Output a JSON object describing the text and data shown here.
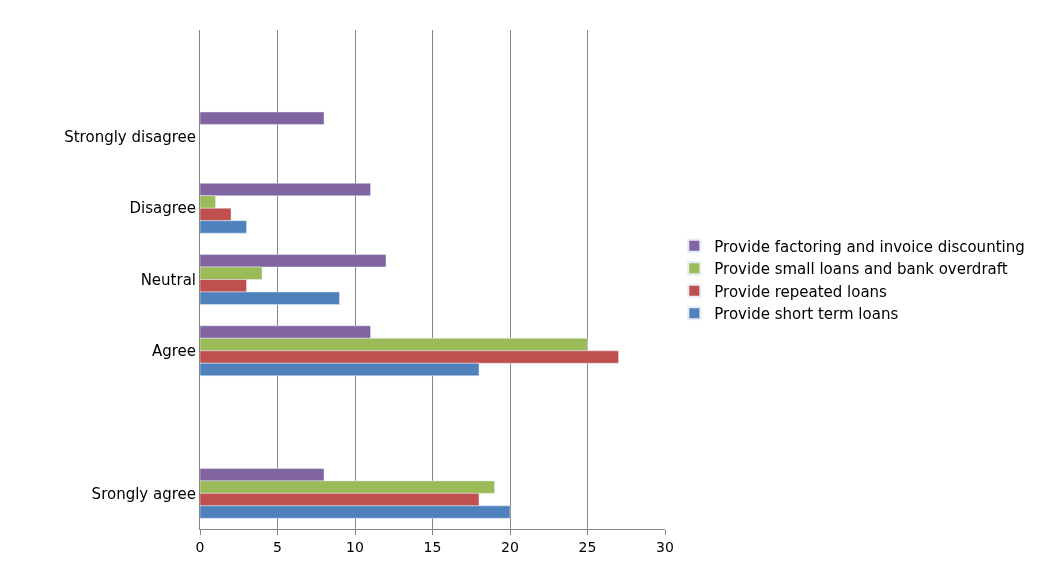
{
  "chart_data": {
    "type": "bar",
    "orientation": "horizontal",
    "categories": [
      null,
      "Strongly disagree",
      "Disagree",
      "Neutral",
      "Agree",
      null,
      "Srongly agree"
    ],
    "series": [
      {
        "name": "Provide factoring and invoice discounting",
        "color": "#8064a2",
        "values": [
          null,
          8,
          11,
          12,
          11,
          null,
          8
        ]
      },
      {
        "name": "Provide small loans and bank overdraft",
        "color": "#9bbb59",
        "values": [
          null,
          null,
          1,
          4,
          25,
          null,
          19
        ]
      },
      {
        "name": "Provide repeated loans",
        "color": "#c0504d",
        "values": [
          null,
          null,
          2,
          3,
          27,
          null,
          18
        ]
      },
      {
        "name": "Provide short term loans",
        "color": "#4f81bd",
        "values": [
          null,
          null,
          3,
          9,
          18,
          null,
          20
        ]
      }
    ],
    "xlim": [
      0,
      30
    ],
    "xticks": [
      0,
      5,
      10,
      15,
      20,
      25,
      30
    ],
    "grid": "x",
    "legend": "right"
  }
}
